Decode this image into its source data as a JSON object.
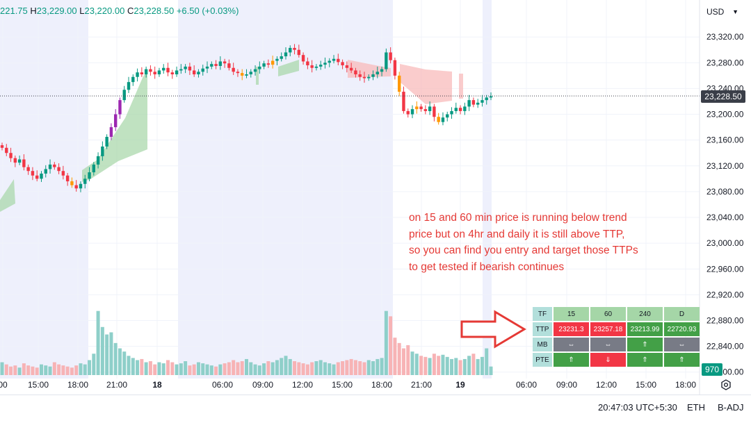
{
  "ohlc": {
    "o_tail": "221.75",
    "h_label": "H",
    "h": "23,229.00",
    "l_label": "L",
    "l": "23,220.00",
    "c_label": "C",
    "c": "23,228.50",
    "change": "+6.50 (+0.03%)"
  },
  "currency": "USD",
  "last_price": "23,228.50",
  "last_volume": "970",
  "annotation": "on 15 and 60 min  price is running below trend price but on 4hr and daily it is still above TTP, so you can find you entry and target those TTPs to get tested if bearish continues",
  "bottom_bar": {
    "time": "20:47:03 UTC+5:30",
    "eth": "ETH",
    "badj": "B-ADJ"
  },
  "colors": {
    "up": "#089981",
    "down": "#f23645",
    "purple": "#9c27b0",
    "orange": "#ff9800"
  },
  "table": {
    "header": [
      "TF",
      "15",
      "60",
      "240",
      "D"
    ],
    "rows": [
      {
        "label": "TTP",
        "cells": [
          {
            "text": "23231.3",
            "color": "red"
          },
          {
            "text": "23257.18",
            "color": "red"
          },
          {
            "text": "23213.99",
            "color": "green"
          },
          {
            "text": "22720.93",
            "color": "green"
          }
        ]
      },
      {
        "label": "MB",
        "cells": [
          {
            "text": "⇔",
            "color": "gray"
          },
          {
            "text": "⇔",
            "color": "gray"
          },
          {
            "text": "⇑",
            "color": "green"
          },
          {
            "text": "⇔",
            "color": "gray"
          }
        ]
      },
      {
        "label": "PTE",
        "cells": [
          {
            "text": "⇑",
            "color": "green"
          },
          {
            "text": "⇓",
            "color": "red"
          },
          {
            "text": "⇑",
            "color": "green"
          },
          {
            "text": "⇑",
            "color": "green"
          }
        ]
      }
    ]
  },
  "chart_data": {
    "type": "candlestick",
    "y_ticks": [
      "23,320.00",
      "23,280.00",
      "23,240.00",
      "23,200.00",
      "23,160.00",
      "23,120.00",
      "23,080.00",
      "23,040.00",
      "23,000.00",
      "22,960.00",
      "22,920.00",
      "22,880.00",
      "22,840.00",
      "22,800.00"
    ],
    "ylim": [
      22790,
      23345
    ],
    "x_ticks": [
      {
        "label": "00",
        "bold": false
      },
      {
        "label": "15:00",
        "bold": false
      },
      {
        "label": "18:00",
        "bold": false
      },
      {
        "label": "21:00",
        "bold": false
      },
      {
        "label": "18",
        "bold": true
      },
      {
        "label": "06:00",
        "bold": false
      },
      {
        "label": "09:00",
        "bold": false
      },
      {
        "label": "12:00",
        "bold": false
      },
      {
        "label": "15:00",
        "bold": false
      },
      {
        "label": "18:00",
        "bold": false
      },
      {
        "label": "21:00",
        "bold": false
      },
      {
        "label": "19",
        "bold": true
      },
      {
        "label": "06:00",
        "bold": false
      },
      {
        "label": "09:00",
        "bold": false
      },
      {
        "label": "12:00",
        "bold": false
      },
      {
        "label": "15:00",
        "bold": false
      },
      {
        "label": "18:00",
        "bold": false
      }
    ],
    "bar_closes": [
      23148,
      23140,
      23132,
      23125,
      23130,
      23118,
      23112,
      23105,
      23100,
      23108,
      23115,
      23122,
      23118,
      23112,
      23105,
      23096,
      23090,
      23085,
      23092,
      23100,
      23110,
      23122,
      23135,
      23150,
      23165,
      23180,
      23200,
      23222,
      23238,
      23250,
      23258,
      23265,
      23262,
      23270,
      23266,
      23262,
      23268,
      23272,
      23265,
      23262,
      23268,
      23270,
      23274,
      23268,
      23262,
      23266,
      23271,
      23274,
      23278,
      23275,
      23282,
      23279,
      23272,
      23266,
      23264,
      23260,
      23262,
      23266,
      23270,
      23274,
      23279,
      23277,
      23283,
      23286,
      23290,
      23296,
      23303,
      23300,
      23292,
      23282,
      23276,
      23272,
      23274,
      23277,
      23280,
      23283,
      23286,
      23281,
      23276,
      23272,
      23268,
      23262,
      23258,
      23256,
      23258,
      23262,
      23266,
      23270,
      23296,
      23284,
      23260,
      23235,
      23205,
      23200,
      23208,
      23212,
      23208,
      23205,
      23212,
      23196,
      23188,
      23195,
      23200,
      23205,
      23210,
      23205,
      23212,
      23222,
      23215,
      23218,
      23222,
      23226,
      23228
    ],
    "volume_values": [
      12,
      10,
      8,
      9,
      7,
      11,
      9,
      8,
      7,
      10,
      9,
      8,
      12,
      10,
      9,
      8,
      7,
      9,
      11,
      10,
      14,
      20,
      60,
      45,
      38,
      40,
      30,
      25,
      22,
      18,
      16,
      14,
      15,
      12,
      13,
      10,
      12,
      11,
      14,
      12,
      10,
      11,
      13,
      9,
      10,
      12,
      11,
      10,
      9,
      8,
      10,
      11,
      12,
      14,
      12,
      13,
      15,
      12,
      10,
      9,
      11,
      13,
      12,
      14,
      16,
      18,
      15,
      13,
      12,
      11,
      10,
      12,
      13,
      14,
      12,
      11,
      10,
      12,
      13,
      14,
      15,
      14,
      13,
      12,
      14,
      13,
      15,
      16,
      60,
      55,
      35,
      30,
      25,
      28,
      22,
      20,
      18,
      17,
      16,
      20,
      18,
      19,
      17,
      15,
      16,
      14,
      15,
      18,
      20,
      15,
      17,
      25,
      8
    ],
    "ttp_line": [
      {
        "x": 0,
        "y": 23240
      },
      {
        "x": 1,
        "y": 23240
      }
    ],
    "current_price": 23228.5
  }
}
